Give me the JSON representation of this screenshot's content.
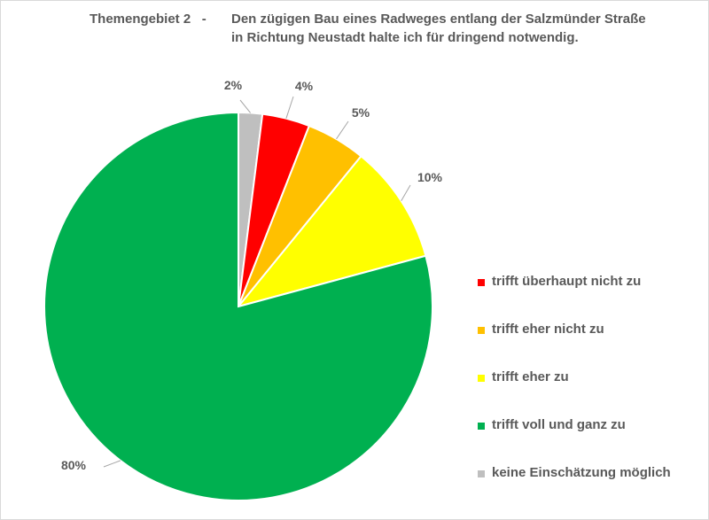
{
  "chart_data": {
    "type": "pie",
    "title_prefix": "Themengebiet 2   -",
    "title": "Den zügigen Bau eines Radweges entlang der Salzmünder Straße in Richtung Neustadt halte  ich für dringend notwendig.",
    "slices": [
      {
        "label": "keine Einschätzung möglich",
        "value": 2,
        "display": "2%",
        "color": "#bfbfbf"
      },
      {
        "label": "trifft überhaupt nicht zu",
        "value": 4,
        "display": "4%",
        "color": "#ff0000"
      },
      {
        "label": "trifft eher nicht zu",
        "value": 5,
        "display": "5%",
        "color": "#ffc000"
      },
      {
        "label": "trifft eher zu",
        "value": 10,
        "display": "10%",
        "color": "#ffff00"
      },
      {
        "label": "trifft voll und ganz zu",
        "value": 80,
        "display": "80%",
        "color": "#00b050"
      }
    ],
    "legend": [
      {
        "label": "trifft überhaupt nicht zu",
        "color": "#ff0000"
      },
      {
        "label": "trifft eher nicht zu",
        "color": "#ffc000"
      },
      {
        "label": "trifft eher zu",
        "color": "#ffff00"
      },
      {
        "label": "trifft voll und ganz zu",
        "color": "#00b050"
      },
      {
        "label": "keine Einschätzung möglich",
        "color": "#bfbfbf"
      }
    ],
    "legend_position": "right"
  }
}
